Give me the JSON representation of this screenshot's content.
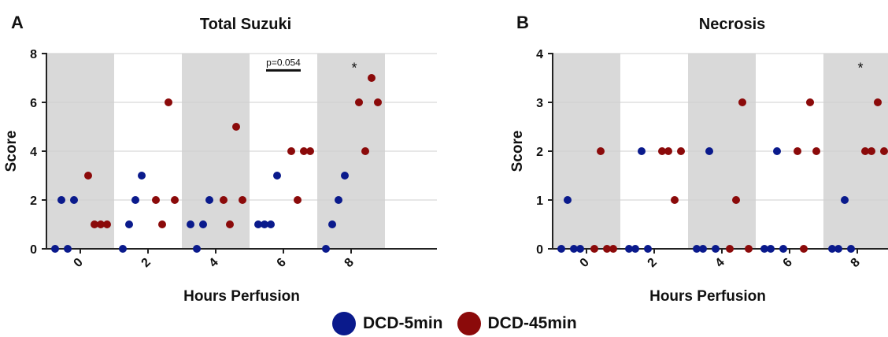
{
  "colors": {
    "dcd5": "#0a1a8c",
    "dcd45": "#8b0a0a",
    "band": "#d9d9d9",
    "grid": "#cfcfcf"
  },
  "legend": [
    {
      "label": "DCD-5min",
      "color": "#0a1a8c"
    },
    {
      "label": "DCD-45min",
      "color": "#8b0a0a"
    }
  ],
  "chart_data": [
    {
      "panel_letter": "A",
      "type": "scatter",
      "title": "Total Suzuki",
      "xlabel": "Hours Perfusion",
      "ylabel": "Score",
      "ylim": [
        0,
        8
      ],
      "yticks": [
        0,
        2,
        4,
        6,
        8
      ],
      "categories": [
        "0",
        "2",
        "4",
        "6",
        "8"
      ],
      "shaded_categories": [
        "0",
        "4",
        "8"
      ],
      "series": [
        {
          "name": "DCD-5min",
          "values": [
            [
              0,
              2,
              0,
              2
            ],
            [
              0,
              1,
              2,
              3
            ],
            [
              1,
              0,
              1,
              2
            ],
            [
              1,
              1,
              1,
              3
            ],
            [
              0,
              1,
              2,
              3
            ]
          ]
        },
        {
          "name": "DCD-45min",
          "values": [
            [
              3,
              1,
              1,
              1
            ],
            [
              2,
              1,
              6,
              2
            ],
            [
              2,
              1,
              5,
              2
            ],
            [
              4,
              2,
              4,
              4
            ],
            [
              6,
              4,
              7,
              6
            ]
          ]
        }
      ],
      "annotations": [
        {
          "text": "p=0.054",
          "category_from": "6a",
          "category_to": "6b",
          "y": 7.6
        },
        {
          "text": "*",
          "category": "8",
          "y": 7.6
        }
      ]
    },
    {
      "panel_letter": "B",
      "type": "scatter",
      "title": "Necrosis",
      "xlabel": "Hours Perfusion",
      "ylabel": "Score",
      "ylim": [
        0,
        4
      ],
      "yticks": [
        0,
        1,
        2,
        3,
        4
      ],
      "categories": [
        "0",
        "2",
        "4",
        "6",
        "8"
      ],
      "shaded_categories": [
        "0",
        "4",
        "8"
      ],
      "series": [
        {
          "name": "DCD-5min",
          "values": [
            [
              0,
              1,
              0,
              0
            ],
            [
              0,
              0,
              2,
              0
            ],
            [
              0,
              0,
              2,
              0
            ],
            [
              0,
              0,
              2,
              0
            ],
            [
              0,
              0,
              1,
              0
            ]
          ]
        },
        {
          "name": "DCD-45min",
          "values": [
            [
              0,
              2,
              0,
              0
            ],
            [
              2,
              2,
              1,
              2
            ],
            [
              0,
              1,
              3,
              0
            ],
            [
              2,
              0,
              3,
              2
            ],
            [
              2,
              2,
              3,
              2
            ]
          ]
        }
      ],
      "annotations": [
        {
          "text": "*",
          "category": "8",
          "y": 3.8
        }
      ]
    }
  ]
}
